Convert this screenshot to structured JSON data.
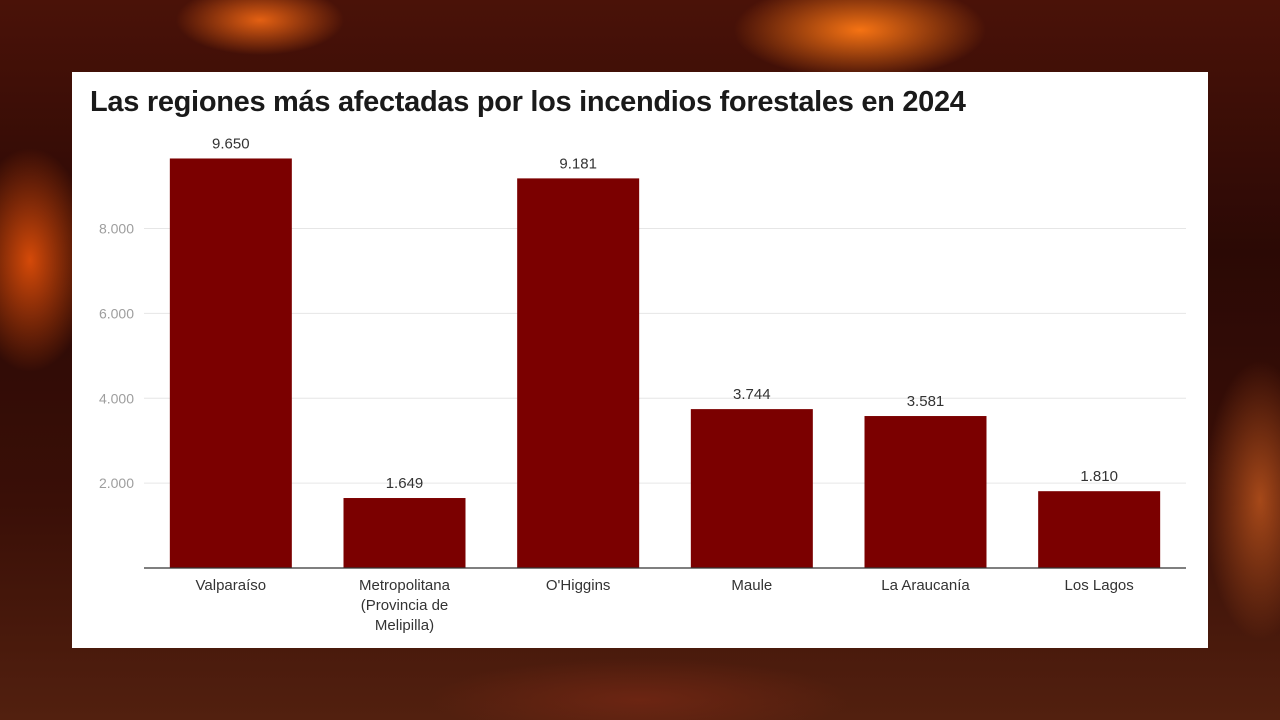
{
  "chart_data": {
    "type": "bar",
    "title": "Las regiones más afectadas por los incendios forestales en 2024",
    "categories": [
      [
        "Valparaíso"
      ],
      [
        "Metropolitana",
        "(Provincia de",
        "Melipilla)"
      ],
      [
        "O'Higgins"
      ],
      [
        "Maule"
      ],
      [
        "La Araucanía"
      ],
      [
        "Los Lagos"
      ]
    ],
    "values": [
      9650,
      1649,
      9181,
      3744,
      3581,
      1810
    ],
    "value_labels": [
      "9.650",
      "1.649",
      "9.181",
      "3.744",
      "3.581",
      "1.810"
    ],
    "yticks": [
      2000,
      4000,
      6000,
      8000
    ],
    "ytick_labels": [
      "2.000",
      "4.000",
      "6.000",
      "8.000"
    ],
    "ylim": [
      0,
      10000
    ],
    "xlabel": "",
    "ylabel": "",
    "grid": true,
    "legend": false,
    "bar_color": "#7b0000",
    "grid_color": "#e6e6e6",
    "axis_color": "#333333"
  }
}
